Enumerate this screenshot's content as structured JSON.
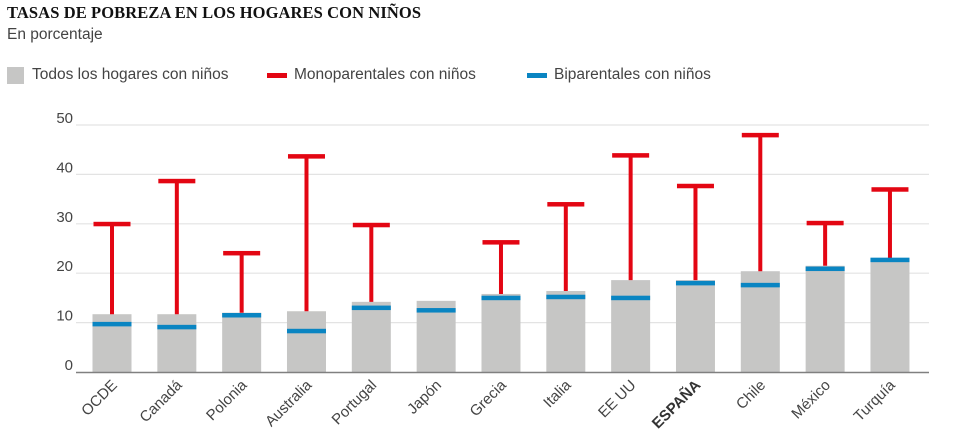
{
  "chart_data": {
    "type": "bar",
    "title": "TASAS DE POBREZA EN LOS HOGARES CON NIÑOS",
    "subtitle": "En porcentaje",
    "xlabel": "",
    "ylabel": "",
    "ylim": [
      0,
      50
    ],
    "yticks": [
      0,
      10,
      20,
      30,
      40,
      50
    ],
    "grid": true,
    "legend_position": "top-left",
    "categories": [
      "OCDE",
      "Canadá",
      "Polonia",
      "Australia",
      "Portugal",
      "Japón",
      "Grecia",
      "Italia",
      "EE UU",
      "ESPAÑA",
      "Chile",
      "México",
      "Turquía"
    ],
    "highlight_category": "ESPAÑA",
    "series": [
      {
        "name": "Todos los hogares con niños",
        "kind": "bar",
        "color": "#c6c6c5",
        "values": [
          11.7,
          11.7,
          12.0,
          12.3,
          14.2,
          14.4,
          15.8,
          16.4,
          18.6,
          18.6,
          20.4,
          21.5,
          23.0
        ]
      },
      {
        "name": "Monoparentales con niños",
        "kind": "marker-line",
        "color": "#e30613",
        "values": [
          30.0,
          38.7,
          24.1,
          43.7,
          29.8,
          null,
          26.3,
          34.0,
          43.9,
          37.7,
          48.0,
          30.2,
          37.0
        ]
      },
      {
        "name": "Biparentales con niños",
        "kind": "marker",
        "color": "#0a85c2",
        "values": [
          9.7,
          9.1,
          11.5,
          8.3,
          13.0,
          12.5,
          15.0,
          15.2,
          15.0,
          18.0,
          17.6,
          20.9,
          22.7
        ]
      }
    ]
  },
  "colors": {
    "grid": "#e3e3e3",
    "axis": "#808080",
    "text": "#444444"
  }
}
